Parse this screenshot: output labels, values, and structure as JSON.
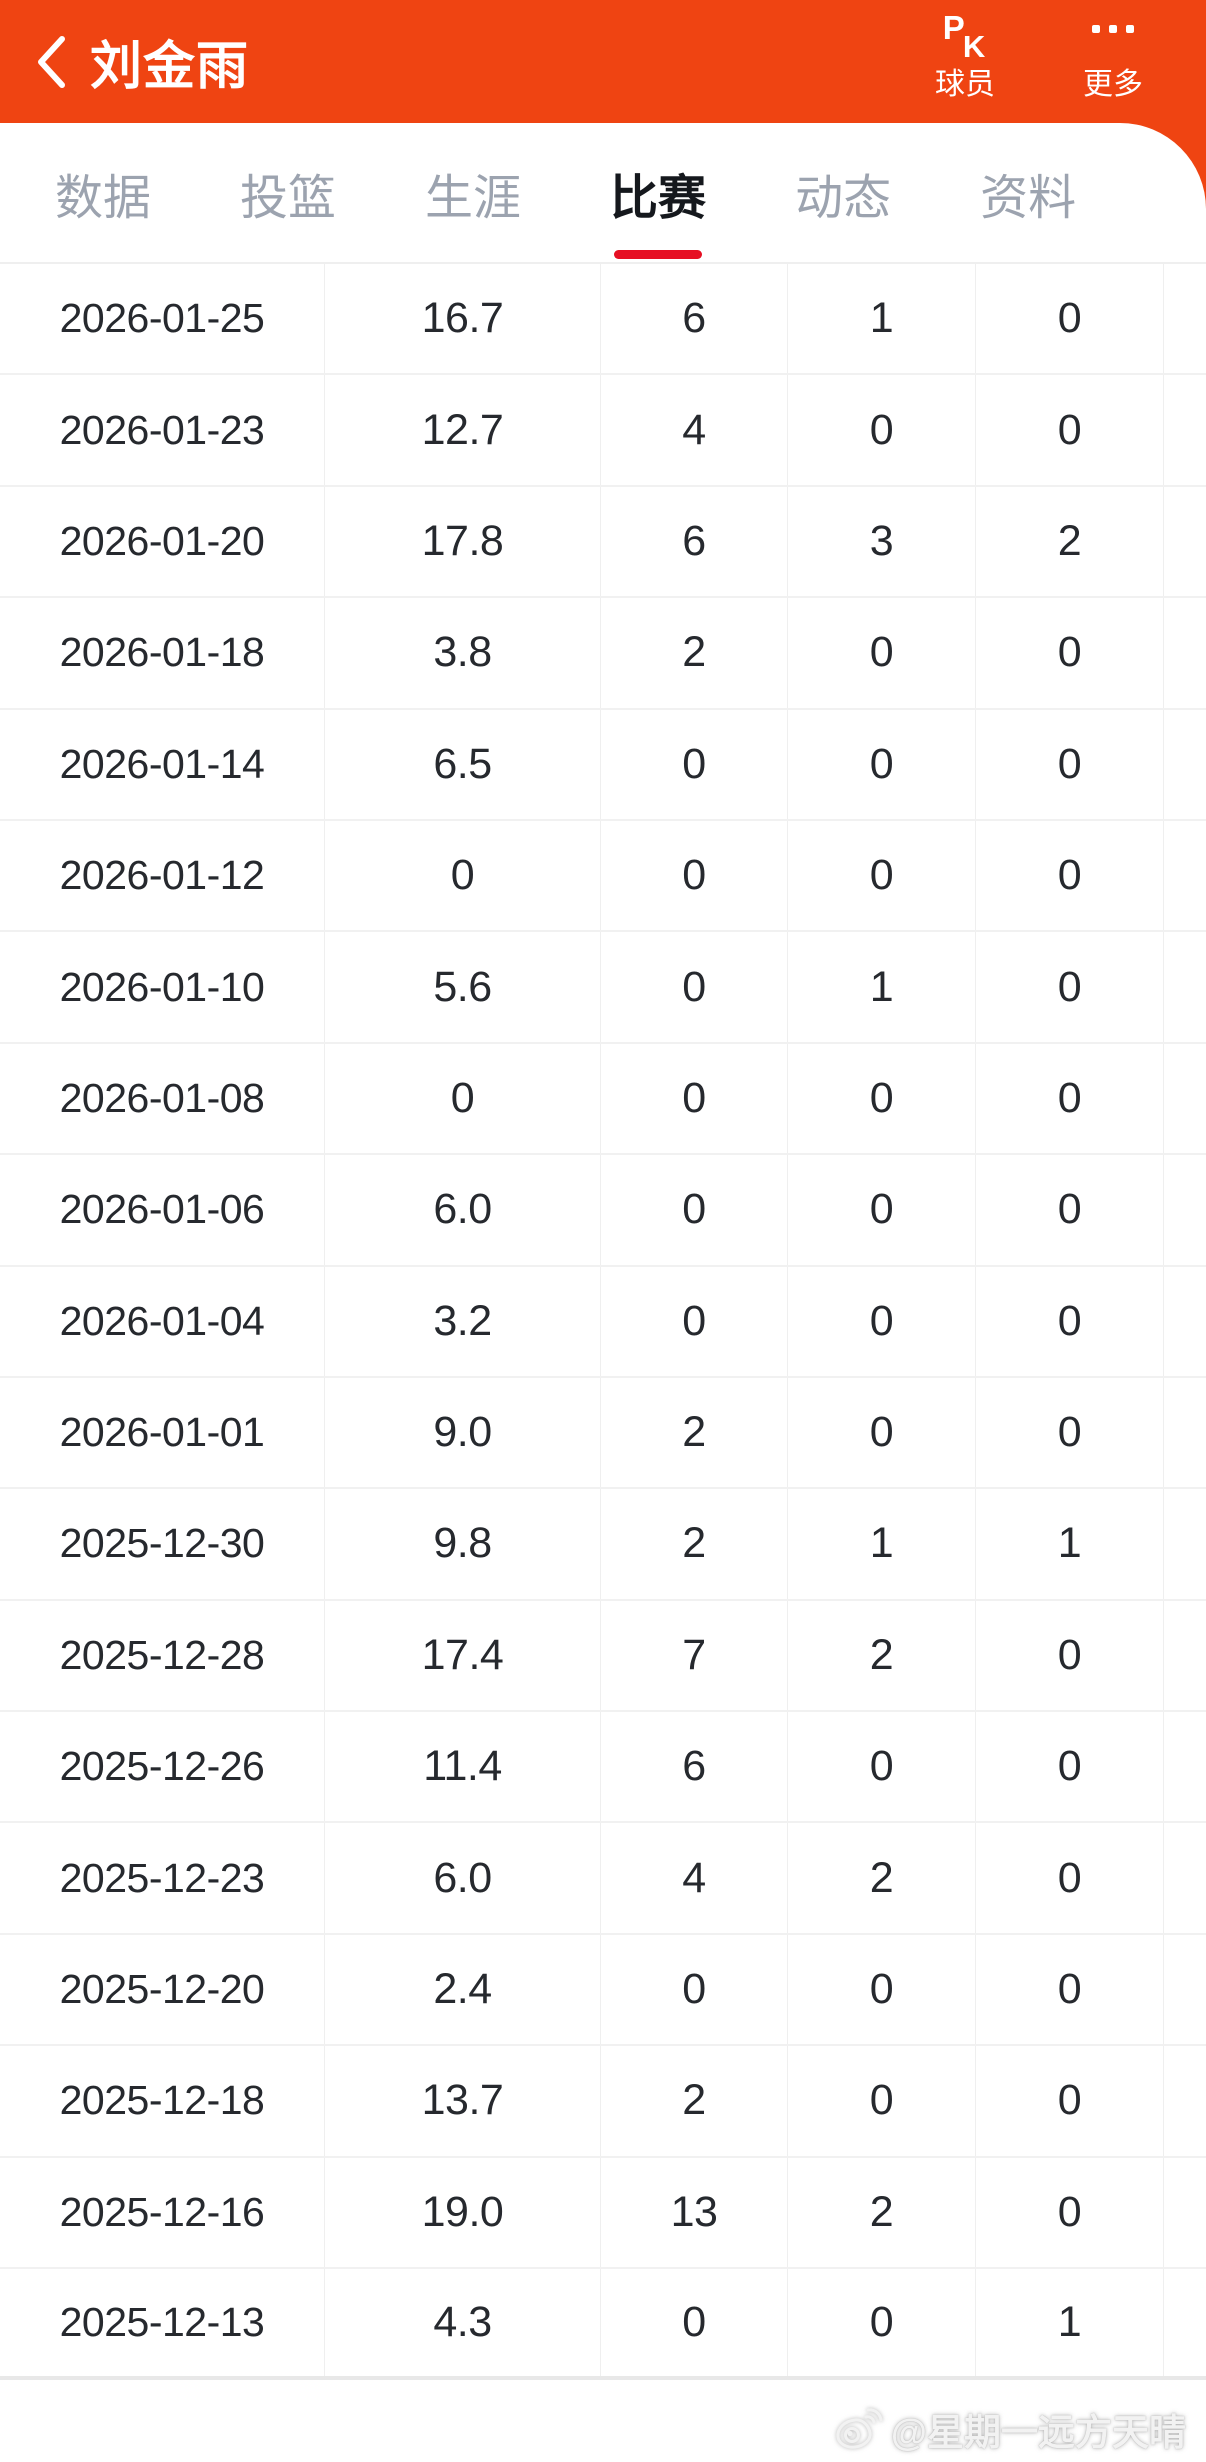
{
  "header": {
    "title": "刘金雨",
    "pk_icon_p": "P",
    "pk_icon_k": "K",
    "pk_label": "球员",
    "more_label": "更多"
  },
  "tabs": {
    "active_index": 3,
    "items": [
      {
        "name": "tab-data",
        "label": "数据"
      },
      {
        "name": "tab-shooting",
        "label": "投篮"
      },
      {
        "name": "tab-career",
        "label": "生涯"
      },
      {
        "name": "tab-matches",
        "label": "比赛"
      },
      {
        "name": "tab-news",
        "label": "动态"
      },
      {
        "name": "tab-profile",
        "label": "资料"
      }
    ]
  },
  "table": {
    "rows": [
      [
        "2026-01-25",
        "16.7",
        "6",
        "1",
        "0"
      ],
      [
        "2026-01-23",
        "12.7",
        "4",
        "0",
        "0"
      ],
      [
        "2026-01-20",
        "17.8",
        "6",
        "3",
        "2"
      ],
      [
        "2026-01-18",
        "3.8",
        "2",
        "0",
        "0"
      ],
      [
        "2026-01-14",
        "6.5",
        "0",
        "0",
        "0"
      ],
      [
        "2026-01-12",
        "0",
        "0",
        "0",
        "0"
      ],
      [
        "2026-01-10",
        "5.6",
        "0",
        "1",
        "0"
      ],
      [
        "2026-01-08",
        "0",
        "0",
        "0",
        "0"
      ],
      [
        "2026-01-06",
        "6.0",
        "0",
        "0",
        "0"
      ],
      [
        "2026-01-04",
        "3.2",
        "0",
        "0",
        "0"
      ],
      [
        "2026-01-01",
        "9.0",
        "2",
        "0",
        "0"
      ],
      [
        "2025-12-30",
        "9.8",
        "2",
        "1",
        "1"
      ],
      [
        "2025-12-28",
        "17.4",
        "7",
        "2",
        "0"
      ],
      [
        "2025-12-26",
        "11.4",
        "6",
        "0",
        "0"
      ],
      [
        "2025-12-23",
        "6.0",
        "4",
        "2",
        "0"
      ],
      [
        "2025-12-20",
        "2.4",
        "0",
        "0",
        "0"
      ],
      [
        "2025-12-18",
        "13.7",
        "2",
        "0",
        "0"
      ],
      [
        "2025-12-16",
        "19.0",
        "13",
        "2",
        "0"
      ],
      [
        "2025-12-13",
        "4.3",
        "0",
        "0",
        "1"
      ]
    ]
  },
  "watermark": {
    "text": "@星期一远方天晴"
  },
  "colors": {
    "header_bg": "#EF4412",
    "tab_underline": "#E60F23",
    "inactive_tab": "#9CA3AF",
    "cell_text": "#26292E"
  }
}
